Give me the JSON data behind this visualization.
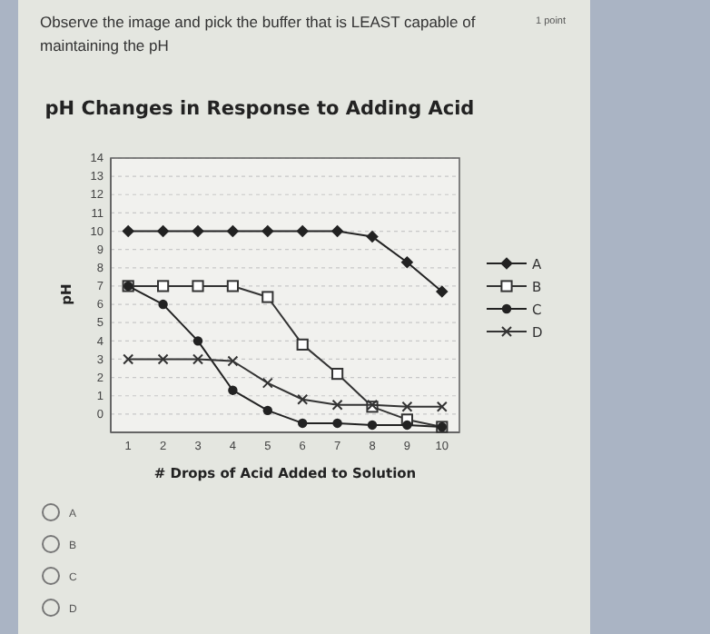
{
  "chart_data": {
    "type": "line",
    "title": "pH Changes in Response to Adding Acid",
    "xlabel": "# Drops of Acid Added to Solution",
    "ylabel": "pH",
    "annotations": [
      "Observe the image and pick the buffer that is LEAST capable of maintaining the pH",
      "1 point",
      "A",
      "B",
      "C",
      "D"
    ],
    "x": [
      1,
      2,
      3,
      4,
      5,
      6,
      7,
      8,
      9,
      10
    ],
    "series": [
      {
        "name": "A",
        "color": "#222222",
        "marker": "diamond",
        "values": [
          10,
          10,
          10,
          10,
          10,
          10,
          10,
          9.7,
          8.3,
          6.7
        ]
      },
      {
        "name": "B",
        "color": "#333333",
        "marker": "square",
        "values": [
          7,
          7,
          7,
          7,
          6.4,
          3.8,
          2.2,
          0.4,
          -0.3,
          -0.7
        ]
      },
      {
        "name": "C",
        "color": "#222222",
        "marker": "circle",
        "values": [
          7,
          6,
          4,
          1.3,
          0.2,
          -0.5,
          -0.5,
          -0.6,
          -0.6,
          -0.7
        ]
      },
      {
        "name": "D",
        "color": "#333333",
        "marker": "cross",
        "values": [
          3,
          3,
          3,
          2.9,
          1.7,
          0.8,
          0.5,
          0.5,
          0.4,
          0.4
        ]
      }
    ],
    "xlim": [
      0.5,
      10.5
    ],
    "xticks": [
      1,
      2,
      3,
      4,
      5,
      6,
      7,
      8,
      9,
      10
    ],
    "ylim": [
      -1,
      14
    ],
    "yticks": [
      0,
      1,
      2,
      3,
      4,
      5,
      6,
      7,
      8,
      9,
      10,
      11,
      12,
      13,
      14
    ],
    "grid": "y",
    "legend": "right",
    "line_style": "solid"
  }
}
